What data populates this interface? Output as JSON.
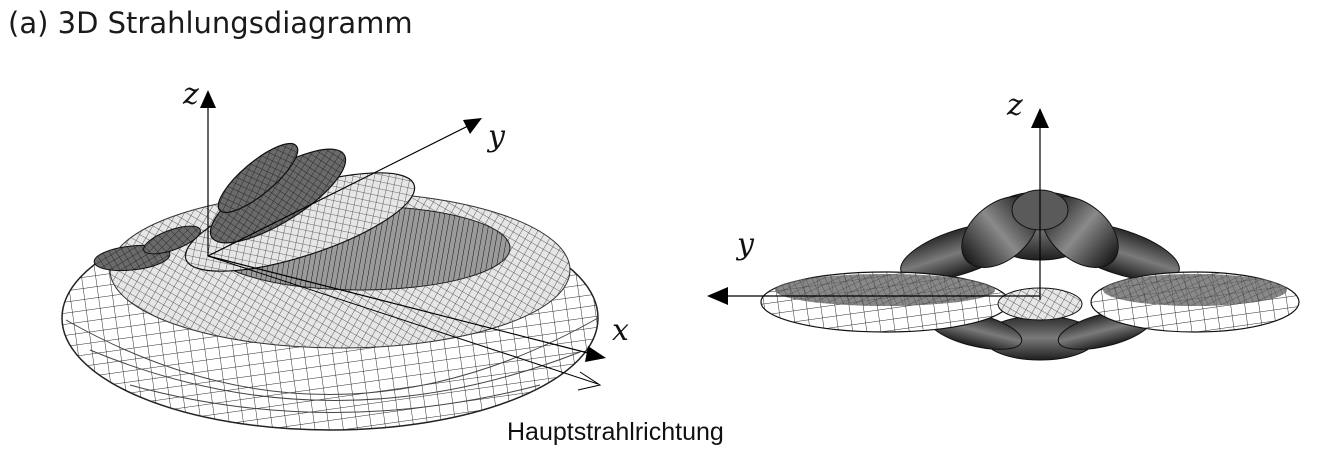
{
  "title": "(a) 3D Strahlungsdiagramm",
  "left_view": {
    "axis_z": "z",
    "axis_y": "y",
    "axis_x": "x",
    "caption": "Hauptstrahlrichtung"
  },
  "right_view": {
    "axis_z": "z",
    "axis_y": "y"
  }
}
